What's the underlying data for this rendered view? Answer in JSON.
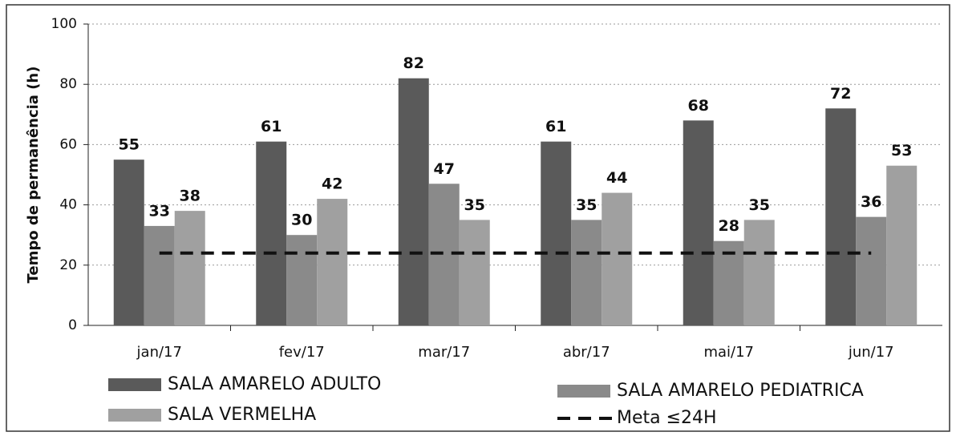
{
  "chart_data": {
    "type": "bar",
    "categories": [
      "jan/17",
      "fev/17",
      "mar/17",
      "abr/17",
      "mai/17",
      "jun/17"
    ],
    "series": [
      {
        "name": "SALA AMARELO ADULTO",
        "color": "#5a5a5a",
        "values": [
          55,
          61,
          82,
          61,
          68,
          72
        ]
      },
      {
        "name": "SALA AMARELO PEDIATRICA",
        "color": "#8a8a8a",
        "values": [
          33,
          30,
          47,
          35,
          28,
          36
        ]
      },
      {
        "name": "SALA VERMELHA",
        "color": "#a0a0a0",
        "values": [
          38,
          42,
          35,
          44,
          35,
          53
        ]
      },
      {
        "name": "Meta ≤24H",
        "type": "line",
        "color": "#111111",
        "dashed": true,
        "values": [
          24,
          24,
          24,
          24,
          24,
          24
        ]
      }
    ],
    "ylabel": "Tempo de permanência (h)",
    "ylim": [
      0,
      100
    ],
    "yticks": [
      0,
      20,
      40,
      60,
      80,
      100
    ],
    "grid": true
  }
}
